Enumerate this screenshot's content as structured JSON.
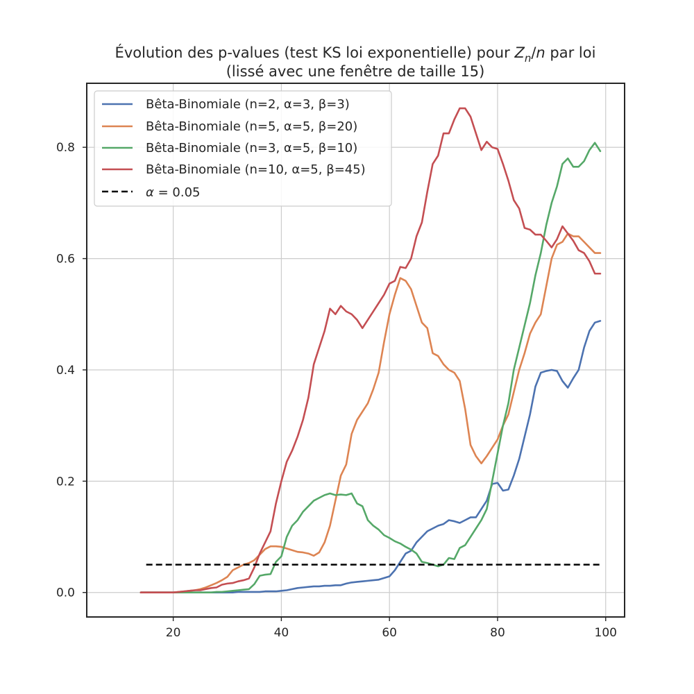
{
  "chart_data": {
    "type": "line",
    "title_parts": [
      "Évolution des p-values (test KS loi exponentielle) pour ",
      "Z",
      "n",
      "/",
      "n",
      " par loi"
    ],
    "title_line2": "(lissé avec une fenêtre de taille 15)",
    "xlabel": "",
    "ylabel": "",
    "xlim": [
      4,
      103.5
    ],
    "ylim": [
      -0.044,
      0.915
    ],
    "x_ticks": [
      20,
      40,
      60,
      80,
      100
    ],
    "x_tick_labels": [
      "20",
      "40",
      "60",
      "80",
      "100"
    ],
    "y_ticks": [
      0.0,
      0.2,
      0.4,
      0.6,
      0.8
    ],
    "y_tick_labels": [
      "0.0",
      "0.2",
      "0.4",
      "0.6",
      "0.8"
    ],
    "grid": true,
    "legend_position": "upper-left",
    "x": [
      14,
      15,
      16,
      17,
      18,
      19,
      20,
      21,
      22,
      23,
      24,
      25,
      26,
      27,
      28,
      29,
      30,
      31,
      32,
      33,
      34,
      35,
      36,
      37,
      38,
      39,
      40,
      41,
      42,
      43,
      44,
      45,
      46,
      47,
      48,
      49,
      50,
      51,
      52,
      53,
      54,
      55,
      56,
      57,
      58,
      59,
      60,
      61,
      62,
      63,
      64,
      65,
      66,
      67,
      68,
      69,
      70,
      71,
      72,
      73,
      74,
      75,
      76,
      77,
      78,
      79,
      80,
      81,
      82,
      83,
      84,
      85,
      86,
      87,
      88,
      89,
      90,
      91,
      92,
      93,
      94,
      95,
      96,
      97,
      98,
      99
    ],
    "series": [
      {
        "name": "Bêta-Binomiale (n=2, α=3, β=3)",
        "color": "#4c72b0",
        "values": [
          0,
          0,
          0,
          0,
          0,
          0,
          0,
          0,
          0,
          0,
          0,
          0,
          0,
          0,
          0,
          0,
          0,
          0,
          0.001,
          0.001,
          0.001,
          0.001,
          0.001,
          0.002,
          0.002,
          0.002,
          0.003,
          0.004,
          0.006,
          0.008,
          0.009,
          0.01,
          0.011,
          0.011,
          0.012,
          0.012,
          0.013,
          0.013,
          0.016,
          0.018,
          0.019,
          0.02,
          0.021,
          0.022,
          0.023,
          0.026,
          0.029,
          0.04,
          0.055,
          0.07,
          0.075,
          0.09,
          0.1,
          0.11,
          0.115,
          0.12,
          0.123,
          0.13,
          0.128,
          0.125,
          0.13,
          0.135,
          0.135,
          0.15,
          0.165,
          0.195,
          0.197,
          0.183,
          0.185,
          0.21,
          0.24,
          0.28,
          0.32,
          0.37,
          0.395,
          0.398,
          0.4,
          0.398,
          0.38,
          0.368,
          0.385,
          0.4,
          0.44,
          0.47,
          0.485,
          0.488
        ]
      },
      {
        "name": "Bêta-Binomiale (n=5, α=5, β=20)",
        "color": "#dd8452",
        "values": [
          0,
          0,
          0,
          0,
          0,
          0,
          0,
          0.001,
          0.002,
          0.003,
          0.004,
          0.006,
          0.009,
          0.013,
          0.017,
          0.022,
          0.028,
          0.04,
          0.045,
          0.05,
          0.053,
          0.058,
          0.068,
          0.078,
          0.083,
          0.083,
          0.082,
          0.079,
          0.076,
          0.073,
          0.072,
          0.07,
          0.066,
          0.072,
          0.09,
          0.12,
          0.165,
          0.21,
          0.23,
          0.285,
          0.31,
          0.325,
          0.34,
          0.365,
          0.395,
          0.45,
          0.5,
          0.535,
          0.565,
          0.56,
          0.545,
          0.515,
          0.485,
          0.475,
          0.43,
          0.425,
          0.41,
          0.4,
          0.395,
          0.38,
          0.33,
          0.265,
          0.245,
          0.232,
          0.245,
          0.26,
          0.275,
          0.3,
          0.32,
          0.36,
          0.4,
          0.43,
          0.465,
          0.485,
          0.5,
          0.55,
          0.6,
          0.625,
          0.63,
          0.645,
          0.64,
          0.64,
          0.63,
          0.62,
          0.61,
          0.61
        ]
      },
      {
        "name": "Bêta-Binomiale (n=3, α=5, β=10)",
        "color": "#55a868",
        "values": [
          0,
          0,
          0,
          0,
          0,
          0,
          0,
          0,
          0,
          0,
          0,
          0,
          0,
          0,
          0.001,
          0.001,
          0.002,
          0.003,
          0.004,
          0.005,
          0.006,
          0.015,
          0.03,
          0.032,
          0.033,
          0.055,
          0.065,
          0.1,
          0.12,
          0.13,
          0.145,
          0.155,
          0.165,
          0.17,
          0.175,
          0.178,
          0.175,
          0.176,
          0.175,
          0.178,
          0.16,
          0.155,
          0.13,
          0.12,
          0.113,
          0.103,
          0.098,
          0.092,
          0.088,
          0.082,
          0.077,
          0.07,
          0.055,
          0.053,
          0.05,
          0.047,
          0.05,
          0.062,
          0.06,
          0.08,
          0.085,
          0.1,
          0.115,
          0.13,
          0.15,
          0.2,
          0.25,
          0.3,
          0.34,
          0.4,
          0.44,
          0.48,
          0.52,
          0.57,
          0.61,
          0.66,
          0.7,
          0.73,
          0.77,
          0.78,
          0.765,
          0.765,
          0.775,
          0.795,
          0.808,
          0.793
        ]
      },
      {
        "name": "Bêta-Binomiale (n=10, α=5, β=45)",
        "color": "#c44e52",
        "values": [
          0,
          0,
          0,
          0,
          0,
          0,
          0,
          0.001,
          0.002,
          0.003,
          0.004,
          0.004,
          0.006,
          0.008,
          0.009,
          0.014,
          0.016,
          0.017,
          0.02,
          0.022,
          0.025,
          0.045,
          0.07,
          0.09,
          0.11,
          0.16,
          0.2,
          0.235,
          0.255,
          0.28,
          0.31,
          0.35,
          0.41,
          0.44,
          0.47,
          0.51,
          0.5,
          0.515,
          0.505,
          0.5,
          0.49,
          0.475,
          0.49,
          0.505,
          0.52,
          0.535,
          0.555,
          0.56,
          0.585,
          0.583,
          0.6,
          0.64,
          0.665,
          0.72,
          0.77,
          0.785,
          0.825,
          0.825,
          0.85,
          0.87,
          0.87,
          0.855,
          0.825,
          0.795,
          0.81,
          0.8,
          0.797,
          0.77,
          0.74,
          0.705,
          0.69,
          0.655,
          0.652,
          0.643,
          0.643,
          0.632,
          0.62,
          0.635,
          0.658,
          0.645,
          0.632,
          0.615,
          0.61,
          0.595,
          0.573,
          0.573
        ]
      }
    ],
    "reference_line": {
      "label_parts": [
        "α",
        " = 0.05"
      ],
      "y": 0.05,
      "x_range": [
        15,
        99
      ],
      "color": "#000000",
      "dash": "dashed"
    }
  }
}
